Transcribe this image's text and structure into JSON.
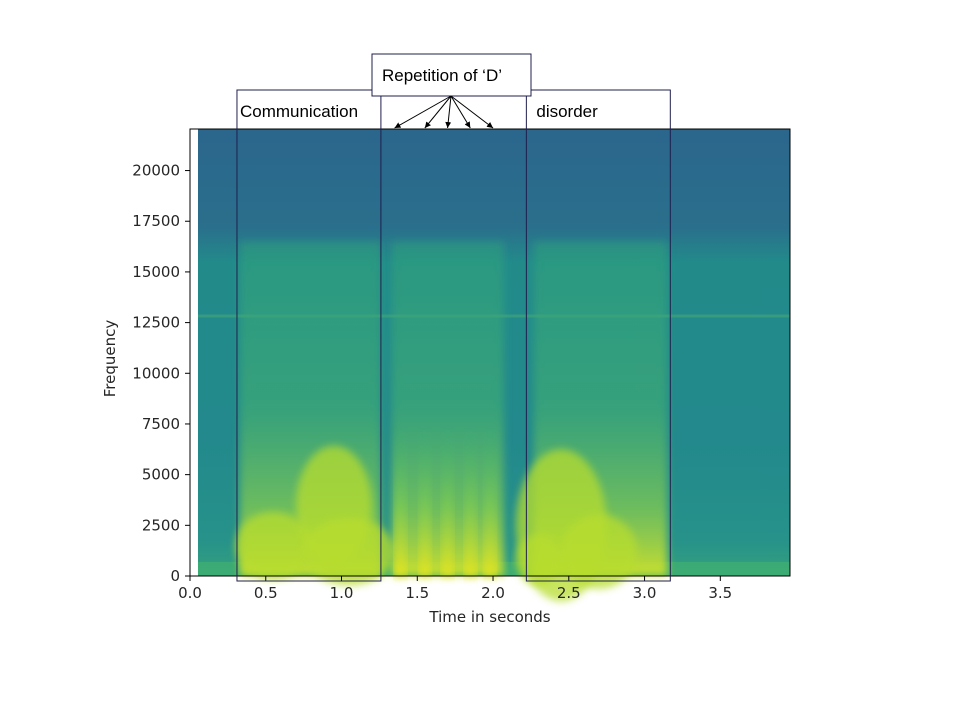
{
  "chart_data": {
    "type": "heatmap",
    "title": "",
    "xlabel": "Time in seconds",
    "ylabel": "Frequency",
    "xlim": [
      0.0,
      3.96
    ],
    "ylim": [
      0,
      22050
    ],
    "x_ticks": [
      0.0,
      0.5,
      1.0,
      1.5,
      2.0,
      2.5,
      3.0,
      3.5
    ],
    "x_tick_labels": [
      "0.0",
      "0.5",
      "1.0",
      "1.5",
      "2.0",
      "2.5",
      "3.0",
      "3.5"
    ],
    "y_ticks": [
      0,
      2500,
      5000,
      7500,
      10000,
      12500,
      15000,
      17500,
      20000
    ],
    "y_tick_labels": [
      "0",
      "2500",
      "5000",
      "7500",
      "10000",
      "12500",
      "15000",
      "17500",
      "20000"
    ],
    "colormap": "viridis",
    "background_color": "#2b6d8c",
    "speech_segments": [
      {
        "start": 0.33,
        "end": 1.26
      },
      {
        "start": 1.33,
        "end": 2.07
      },
      {
        "start": 2.27,
        "end": 3.15
      }
    ],
    "repetition_bursts": [
      1.39,
      1.55,
      1.7,
      1.85,
      1.98
    ],
    "annotations": [
      {
        "label": "Communication",
        "x_start": 0.31,
        "x_end": 1.26
      },
      {
        "label": "disorder",
        "x_start": 2.22,
        "x_end": 3.17
      }
    ],
    "callout": {
      "label": "Repetition of ‘D’",
      "arrow_targets": [
        1.35,
        1.55,
        1.7,
        1.85,
        2.0
      ]
    }
  }
}
